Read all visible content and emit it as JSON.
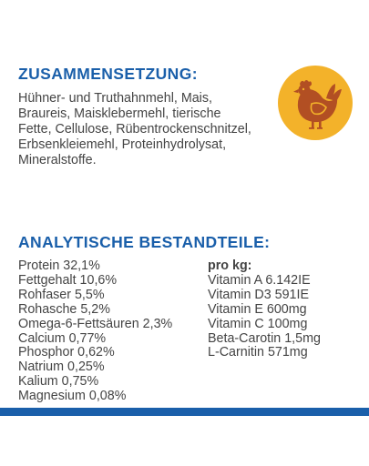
{
  "composition": {
    "heading": "ZUSAMMENSETZUNG:",
    "lines": [
      "Hühner- und Truthahnmehl, Mais,",
      "Braureis, Maisklebermehl, tierische",
      "Fette, Cellulose, Rübentrockenschnitzel,",
      "Erbsenkleiemehl, Proteinhydrolysat,",
      "Mineralstoffe."
    ],
    "icon": {
      "name": "chicken-icon",
      "badge_color": "#f3b22a",
      "chicken_color": "#b24f23"
    }
  },
  "analysis": {
    "heading": "ANALYTISCHE BESTANDTEILE:",
    "constituents": [
      "Protein 32,1%",
      "Fettgehalt 10,6%",
      "Rohfaser 5,5%",
      "Rohasche 5,2%",
      "Omega-6-Fettsäuren 2,3%",
      "Calcium 0,77%",
      "Phosphor 0,62%",
      "Natrium 0,25%",
      "Kalium 0,75%",
      "Magnesium 0,08%"
    ],
    "additives_heading": "pro kg:",
    "additives": [
      "Vitamin A 6.142IE",
      "Vitamin D3 591IE",
      "Vitamin E 600mg",
      "Vitamin C 100mg",
      "Beta-Carotin 1,5mg",
      "L-Carnitin 571mg"
    ]
  },
  "colors": {
    "heading": "#1a5faa",
    "body_text": "#444444",
    "footer_bar": "#1a5faa"
  }
}
